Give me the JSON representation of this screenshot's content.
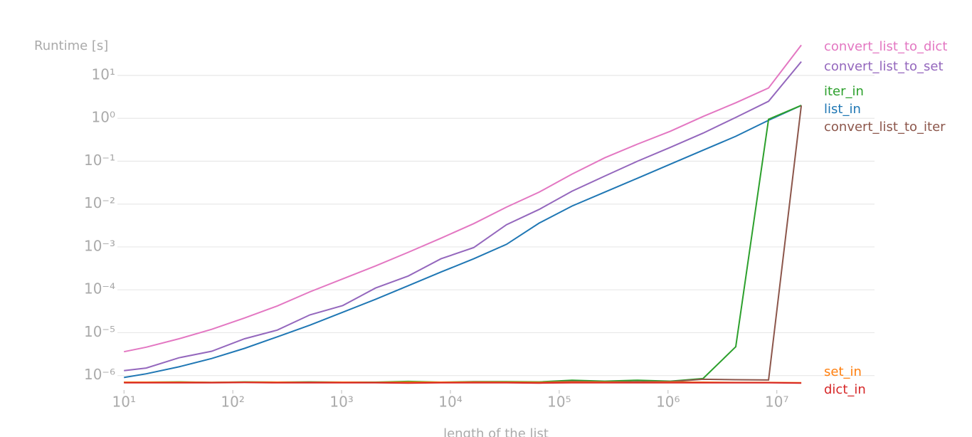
{
  "chart_data": {
    "type": "line",
    "y_label": "Runtime [s]",
    "x_label": "length of the list",
    "log_x": true,
    "log_y": true,
    "grid": true,
    "xlim": [
      8.7,
      79000000
    ],
    "ylim": [
      4.6e-07,
      85
    ],
    "xticks": [
      {
        "value": 10,
        "label": "10¹"
      },
      {
        "value": 100,
        "label": "10²"
      },
      {
        "value": 1000,
        "label": "10³"
      },
      {
        "value": 10000,
        "label": "10⁴"
      },
      {
        "value": 100000,
        "label": "10⁵"
      },
      {
        "value": 1000000,
        "label": "10⁶"
      },
      {
        "value": 10000000,
        "label": "10⁷"
      }
    ],
    "yticks": [
      {
        "value": 1e-06,
        "label": "10⁻⁶"
      },
      {
        "value": 1e-05,
        "label": "10⁻⁵"
      },
      {
        "value": 0.0001,
        "label": "10⁻⁴"
      },
      {
        "value": 0.001,
        "label": "10⁻³"
      },
      {
        "value": 0.01,
        "label": "10⁻²"
      },
      {
        "value": 0.1,
        "label": "10⁻¹"
      },
      {
        "value": 1,
        "label": "10⁰"
      },
      {
        "value": 10,
        "label": "10¹"
      }
    ],
    "x": [
      10,
      16,
      32,
      64,
      128,
      256,
      512,
      1024,
      2048,
      4096,
      8192,
      16384,
      32768,
      65536,
      131072,
      262144,
      524288,
      1048576,
      2097152,
      4194304,
      8388608,
      16777216
    ],
    "series": [
      {
        "name": "convert_list_to_dict",
        "color": "#e377c2",
        "values": [
          3.6e-06,
          4.6e-06,
          7.2e-06,
          1.2e-05,
          2.2e-05,
          4.2e-05,
          9e-05,
          0.00018,
          0.00036,
          0.00075,
          0.0016,
          0.0035,
          0.0085,
          0.019,
          0.05,
          0.12,
          0.25,
          0.5,
          1.1,
          2.3,
          5.1,
          51
        ]
      },
      {
        "name": "convert_list_to_set",
        "color": "#9467bd",
        "values": [
          1.3e-06,
          1.5e-06,
          2.6e-06,
          3.7e-06,
          7.2e-06,
          1.15e-05,
          2.6e-05,
          4.3e-05,
          0.00011,
          0.00021,
          0.00053,
          0.00097,
          0.0033,
          0.0075,
          0.02,
          0.045,
          0.1,
          0.21,
          0.45,
          1.05,
          2.5,
          21
        ]
      },
      {
        "name": "iter_in",
        "color": "#2ca02c",
        "values": [
          7e-07,
          7e-07,
          7.1e-07,
          6.9e-07,
          7.1e-07,
          7e-07,
          7.1e-07,
          7e-07,
          7e-07,
          7.3e-07,
          7e-07,
          7.2e-07,
          7.2e-07,
          7.1e-07,
          7.8e-07,
          7.4e-07,
          7.8e-07,
          7.4e-07,
          8.5e-07,
          4.7e-06,
          0.95,
          2.0
        ]
      },
      {
        "name": "list_in",
        "color": "#1f77b4",
        "values": [
          9e-07,
          1.1e-06,
          1.6e-06,
          2.5e-06,
          4.3e-06,
          8e-06,
          1.5e-05,
          3e-05,
          6e-05,
          0.000125,
          0.00026,
          0.00053,
          0.00115,
          0.0036,
          0.009,
          0.019,
          0.04,
          0.085,
          0.18,
          0.38,
          0.9,
          2.0
        ]
      },
      {
        "name": "convert_list_to_iter",
        "color": "#8c564b",
        "values": [
          7e-07,
          6.9e-07,
          7e-07,
          6.9e-07,
          7e-07,
          6.9e-07,
          7e-07,
          7e-07,
          6.9e-07,
          7e-07,
          6.9e-07,
          7.1e-07,
          7e-07,
          6.9e-07,
          7.3e-07,
          7.1e-07,
          7.2e-07,
          7.2e-07,
          8.2e-07,
          8e-07,
          7.9e-07,
          2.0
        ]
      },
      {
        "name": "set_in",
        "color": "#ff7f0e",
        "values": [
          7e-07,
          7e-07,
          7e-07,
          6.9e-07,
          7e-07,
          7e-07,
          6.9e-07,
          7e-07,
          6.9e-07,
          7e-07,
          7e-07,
          7e-07,
          7e-07,
          6.9e-07,
          7e-07,
          7e-07,
          6.9e-07,
          7e-07,
          7e-07,
          6.9e-07,
          6.9e-07,
          6.8e-07
        ]
      },
      {
        "name": "dict_in",
        "color": "#d62728",
        "values": [
          6.8e-07,
          6.8e-07,
          6.8e-07,
          6.8e-07,
          6.9e-07,
          6.8e-07,
          6.8e-07,
          6.8e-07,
          6.8e-07,
          6.7e-07,
          6.8e-07,
          6.8e-07,
          6.8e-07,
          6.7e-07,
          6.8e-07,
          6.8e-07,
          6.8e-07,
          6.8e-07,
          6.8e-07,
          6.8e-07,
          6.8e-07,
          6.7e-07
        ]
      }
    ]
  }
}
